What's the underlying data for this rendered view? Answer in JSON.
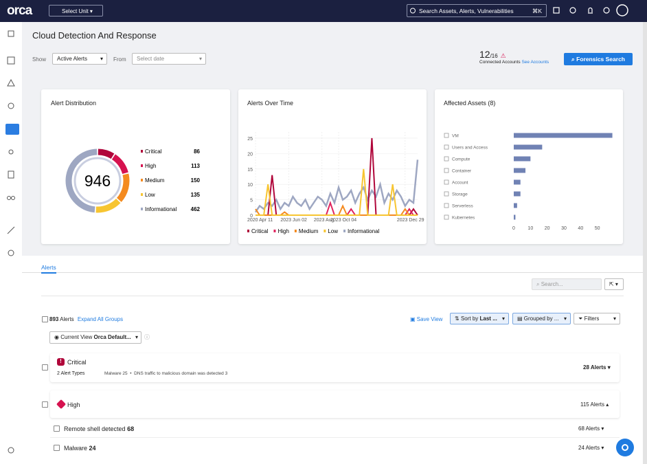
{
  "topbar": {
    "logo": "orca",
    "unit_selector": "Select Unit",
    "search": "Search Assets, Alerts, Vulnerabilities",
    "shortcut": "⌘K"
  },
  "header": {
    "title": "Cloud Detection And Response",
    "show_label": "Show",
    "show_value": "Active Alerts",
    "from_label": "From",
    "from_placeholder": "Select date",
    "accounts_connected": "12",
    "accounts_total": "/16",
    "accounts_label": "Connected Accounts",
    "accounts_link": "See Accounts",
    "forensics_button": "Forensics Search"
  },
  "chart_data": [
    {
      "type": "pie",
      "title": "Alert Distribution",
      "total": 946,
      "categories": [
        "Critical",
        "High",
        "Medium",
        "Low",
        "Informational"
      ],
      "values": [
        86,
        113,
        150,
        135,
        462
      ],
      "colors": [
        "#b0063a",
        "#d6124f",
        "#f48a1f",
        "#f7c531",
        "#9ea7c2"
      ]
    },
    {
      "type": "line",
      "title": "Alerts Over Time",
      "categories": [
        "2020 Apr 11",
        null,
        null,
        null,
        null,
        null,
        null,
        null,
        "2023 Jun 02",
        null,
        null,
        null,
        null,
        null,
        null,
        null,
        "2023 Aug",
        null,
        null,
        null,
        "2023 Oct 04",
        null,
        null,
        null,
        null,
        null,
        null,
        null,
        null,
        null,
        null,
        null,
        null,
        null,
        null,
        null,
        "2023 Dec 29",
        null,
        null,
        null
      ],
      "series": [
        {
          "name": "Critical",
          "color": "#b0063a",
          "values": [
            0,
            0,
            0,
            0,
            13,
            0,
            0,
            0,
            0,
            0,
            0,
            0,
            0,
            0,
            0,
            0,
            0,
            0,
            0,
            0,
            0,
            0,
            0,
            0,
            0,
            0,
            0,
            0,
            25,
            0,
            0,
            0,
            0,
            0,
            0,
            0,
            0,
            0,
            2,
            0
          ]
        },
        {
          "name": "High",
          "color": "#e0245e",
          "values": [
            0,
            0,
            0,
            0,
            0,
            0,
            0,
            0,
            0,
            0,
            0,
            0,
            0,
            0,
            0,
            0,
            0,
            0,
            4,
            0,
            0,
            0,
            0,
            2,
            0,
            0,
            0,
            0,
            0,
            0,
            0,
            0,
            0,
            0,
            0,
            0,
            0,
            2,
            0,
            0
          ]
        },
        {
          "name": "Medium",
          "color": "#f48a1f",
          "values": [
            2,
            0,
            0,
            0,
            0,
            0,
            0,
            1,
            0,
            0,
            0,
            0,
            0,
            0,
            0,
            0,
            0,
            0,
            0,
            0,
            0,
            3,
            0,
            0,
            0,
            0,
            0,
            0,
            0,
            0,
            0,
            0,
            0,
            0,
            0,
            0,
            2,
            0,
            0,
            0
          ]
        },
        {
          "name": "Low",
          "color": "#f7c531",
          "values": [
            0,
            0,
            0,
            10,
            0,
            0,
            0,
            0,
            0,
            0,
            0,
            0,
            0,
            0,
            0,
            0,
            0,
            0,
            0,
            0,
            0,
            0,
            0,
            0,
            0,
            0,
            15,
            0,
            0,
            0,
            0,
            0,
            0,
            10,
            0,
            0,
            0,
            0,
            0,
            0
          ]
        },
        {
          "name": "Informational",
          "color": "#9ea7c2",
          "values": [
            1,
            3,
            2,
            4,
            3,
            5,
            2,
            4,
            3,
            6,
            4,
            3,
            5,
            2,
            4,
            6,
            5,
            3,
            7,
            4,
            9,
            5,
            6,
            8,
            4,
            7,
            9,
            5,
            8,
            6,
            10,
            4,
            7,
            5,
            8,
            6,
            3,
            5,
            4,
            18
          ]
        }
      ],
      "ylim": [
        0,
        27
      ],
      "yticks": [
        0,
        5,
        10,
        15,
        20,
        25
      ],
      "grid": true
    },
    {
      "type": "bar",
      "orientation": "horizontal",
      "title": "Affected Assets (8)",
      "categories": [
        "VM",
        "Users and Access",
        "Compute",
        "Container",
        "Account",
        "Storage",
        "Serverless",
        "Kubernetes"
      ],
      "values": [
        59,
        17,
        10,
        7,
        4,
        4,
        2,
        1
      ],
      "color": "#7082b4",
      "xlim": [
        0,
        60
      ],
      "xticks": [
        0,
        10,
        20,
        30,
        40,
        50
      ]
    }
  ],
  "alerts": {
    "tab": "Alerts",
    "search_placeholder": "Search...",
    "count": "893",
    "count_label": "Alerts",
    "expand": "Expand All Groups",
    "save_view": "Save View",
    "sort_label": "Sort by",
    "sort_value": "Last ...",
    "group_by": "Grouped by ...",
    "filters": "Filters",
    "view_label": "Current View",
    "view_value": "Orca Default...",
    "groups": [
      {
        "severity": "Critical",
        "types": "2 Alert Types",
        "items": [
          "Malware 25",
          "DNS traffic to malicious domain was detected 3"
        ],
        "total": "28 Alerts"
      },
      {
        "severity": "High",
        "total": "115 Alerts",
        "rows": [
          {
            "name": "Remote shell detected",
            "count": "68",
            "total": "68 Alerts"
          },
          {
            "name": "Malware",
            "count": "24",
            "total": "24 Alerts"
          }
        ]
      }
    ]
  }
}
